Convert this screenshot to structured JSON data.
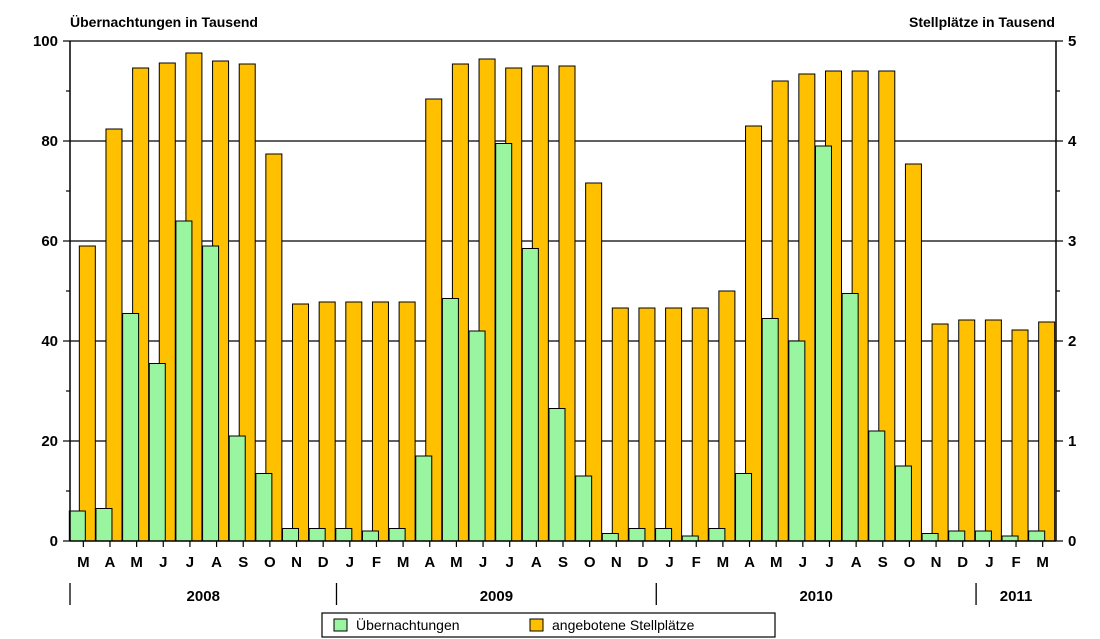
{
  "chart_data": {
    "type": "bar",
    "left_axis_title": "Übernachtungen in Tausend",
    "right_axis_title": "Stellplätze in Tausend",
    "y_left_ticks": [
      "0",
      "20",
      "40",
      "60",
      "80",
      "100"
    ],
    "y_right_ticks": [
      "0",
      "1",
      "2",
      "3",
      "4",
      "5"
    ],
    "ylim_left": [
      0,
      100
    ],
    "ylim_right": [
      0,
      5
    ],
    "categories": [
      "M",
      "A",
      "M",
      "J",
      "J",
      "A",
      "S",
      "O",
      "N",
      "D",
      "J",
      "F",
      "M",
      "A",
      "M",
      "J",
      "J",
      "A",
      "S",
      "O",
      "N",
      "D",
      "J",
      "F",
      "M",
      "A",
      "M",
      "J",
      "J",
      "A",
      "S",
      "O",
      "N",
      "D",
      "J",
      "F",
      "M"
    ],
    "years": [
      {
        "label": "2008",
        "start": 0,
        "end": 9
      },
      {
        "label": "2009",
        "start": 10,
        "end": 21
      },
      {
        "label": "2010",
        "start": 22,
        "end": 33
      },
      {
        "label": "2011",
        "start": 34,
        "end": 36
      }
    ],
    "series": [
      {
        "name": "Übernachtungen",
        "axis": "left",
        "color": "#99f5a0",
        "values": [
          6,
          6.5,
          45.5,
          35.5,
          64,
          59,
          21,
          13.5,
          2.5,
          2.5,
          2.5,
          2,
          2.5,
          17,
          48.5,
          42,
          79.5,
          58.5,
          26.5,
          13,
          1.5,
          2.5,
          2.5,
          1,
          2.5,
          13.5,
          44.5,
          40,
          79,
          49.5,
          22,
          15,
          1.5,
          2,
          2,
          1,
          2
        ]
      },
      {
        "name": "angebotene Stellplätze",
        "axis": "right",
        "color": "#ffc000",
        "values": [
          2.95,
          4.12,
          4.73,
          4.78,
          4.88,
          4.8,
          4.77,
          3.87,
          2.37,
          2.39,
          2.39,
          2.39,
          2.39,
          4.42,
          4.77,
          4.82,
          4.73,
          4.75,
          4.75,
          3.58,
          2.33,
          2.33,
          2.33,
          2.33,
          2.5,
          4.15,
          4.6,
          4.67,
          4.7,
          4.7,
          4.7,
          3.77,
          2.17,
          2.21,
          2.21,
          2.11,
          2.19
        ]
      }
    ],
    "grid": true,
    "legend": "bottom-center"
  }
}
